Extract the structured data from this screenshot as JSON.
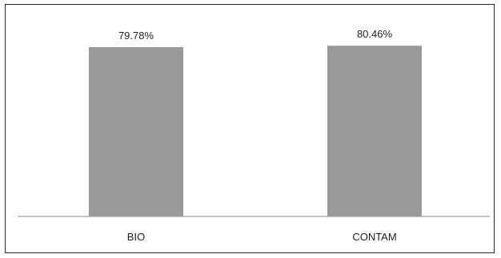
{
  "chart_data": {
    "type": "bar",
    "categories": [
      "BIO",
      "CONTAM"
    ],
    "values": [
      79.78,
      80.46
    ],
    "data_labels": [
      "79.78%",
      "80.46%"
    ],
    "title": "",
    "xlabel": "",
    "ylabel": "",
    "ylim": [
      0,
      100
    ],
    "grid": false,
    "legend": "none",
    "colors": {
      "bar": "#9a9a9a",
      "axis": "#a0a0a0",
      "text": "#222222",
      "border": "#2b2b2b"
    }
  }
}
